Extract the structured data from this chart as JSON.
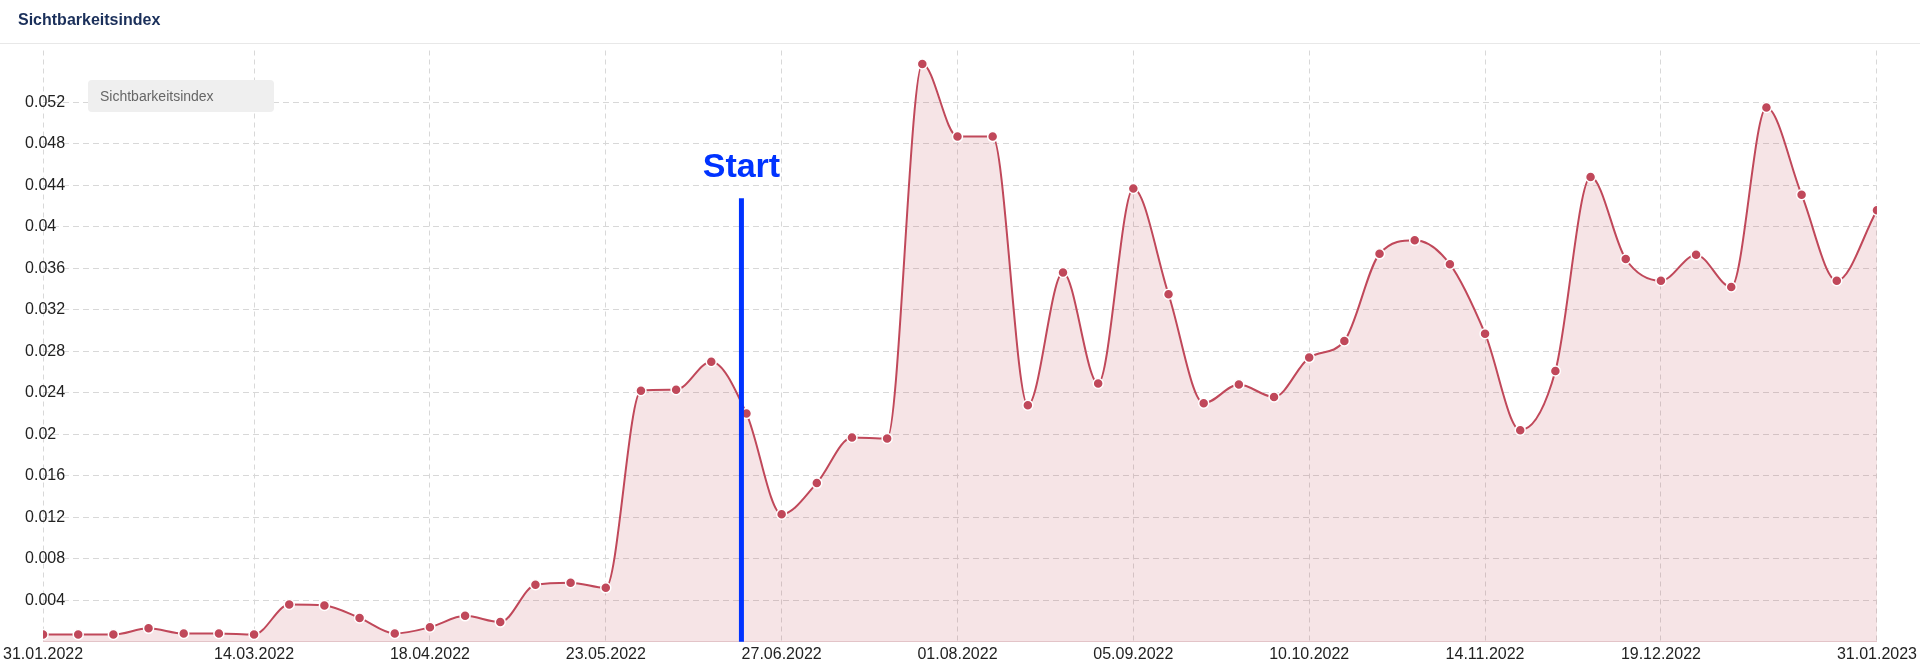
{
  "chart_data": {
    "type": "area",
    "title": "Sichtbarkeitsindex",
    "legend_title": "Sichtbarkeitsindex",
    "legend": "top left",
    "grid": true,
    "marker": "circle",
    "line_style": "solid",
    "x": [
      "2022-01-31",
      "2022-02-07",
      "2022-02-14",
      "2022-02-21",
      "2022-02-28",
      "2022-03-07",
      "2022-03-14",
      "2022-03-21",
      "2022-03-28",
      "2022-04-04",
      "2022-04-11",
      "2022-04-18",
      "2022-04-25",
      "2022-05-02",
      "2022-05-09",
      "2022-05-16",
      "2022-05-23",
      "2022-05-30",
      "2022-06-06",
      "2022-06-13",
      "2022-06-20",
      "2022-06-27",
      "2022-07-04",
      "2022-07-11",
      "2022-07-18",
      "2022-07-25",
      "2022-08-01",
      "2022-08-08",
      "2022-08-15",
      "2022-08-22",
      "2022-08-29",
      "2022-09-05",
      "2022-09-12",
      "2022-09-19",
      "2022-09-26",
      "2022-10-03",
      "2022-10-10",
      "2022-10-17",
      "2022-10-24",
      "2022-10-31",
      "2022-11-07",
      "2022-11-14",
      "2022-11-21",
      "2022-11-28",
      "2022-12-05",
      "2022-12-12",
      "2022-12-19",
      "2022-12-26",
      "2023-01-02",
      "2023-01-09",
      "2023-01-16",
      "2023-01-23",
      "2023-01-31"
    ],
    "series": [
      {
        "color": "#c0485a",
        "values": [
          0.0007,
          0.0007,
          0.0007,
          0.0013,
          0.0008,
          0.0008,
          0.0007,
          0.0036,
          0.0035,
          0.0023,
          0.0008,
          0.0014,
          0.0025,
          0.0019,
          0.0055,
          0.0057,
          0.0052,
          0.0242,
          0.0243,
          0.027,
          0.022,
          0.0123,
          0.0153,
          0.0197,
          0.0196,
          0.0557,
          0.0487,
          0.0487,
          0.0228,
          0.0356,
          0.0249,
          0.0437,
          0.0335,
          0.023,
          0.0248,
          0.0236,
          0.0274,
          0.029,
          0.0374,
          0.0387,
          0.0364,
          0.0297,
          0.0204,
          0.0261,
          0.0448,
          0.0369,
          0.0348,
          0.0373,
          0.0342,
          0.0515,
          0.0431,
          0.0348,
          0.0416
        ]
      }
    ],
    "xlim": [
      "2022-01-31",
      "2023-01-31"
    ],
    "xticks": [
      {
        "value": "2022-01-31",
        "label": "31.01.2022"
      },
      {
        "value": "2022-03-14",
        "label": "14.03.2022"
      },
      {
        "value": "2022-04-18",
        "label": "18.04.2022"
      },
      {
        "value": "2022-05-23",
        "label": "23.05.2022"
      },
      {
        "value": "2022-06-27",
        "label": "27.06.2022"
      },
      {
        "value": "2022-08-01",
        "label": "01.08.2022"
      },
      {
        "value": "2022-09-05",
        "label": "05.09.2022"
      },
      {
        "value": "2022-10-10",
        "label": "10.10.2022"
      },
      {
        "value": "2022-11-14",
        "label": "14.11.2022"
      },
      {
        "value": "2022-12-19",
        "label": "19.12.2022"
      },
      {
        "value": "2023-01-31",
        "label": "31.01.2023"
      }
    ],
    "ylim": [
      0,
      0.057
    ],
    "yticks": [
      0.004,
      0.008,
      0.012,
      0.016,
      0.02,
      0.024,
      0.028,
      0.032,
      0.036,
      0.04,
      0.044,
      0.048,
      0.052
    ],
    "ref_lines": [
      {
        "axis": "x",
        "value": "2022-06-19",
        "label": "Start",
        "color": "#0033ff"
      }
    ]
  }
}
